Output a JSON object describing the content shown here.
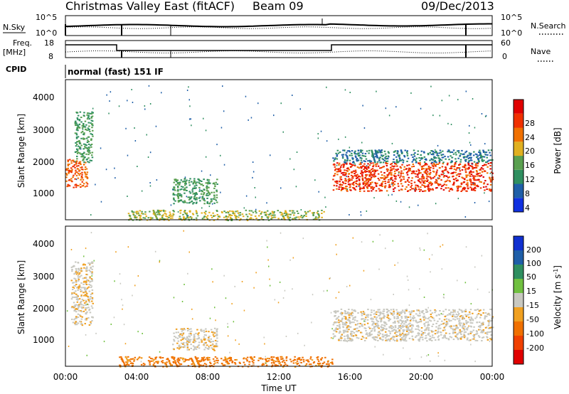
{
  "header": {
    "station": "Christmas Valley East (fitACF)",
    "beam": "Beam 09",
    "date": "09/Dec/2013"
  },
  "noise_panel": {
    "left_label": "N.Sky",
    "right_label": "N.Search",
    "left_ticks": [
      "10^5",
      "10^0"
    ],
    "right_ticks": [
      "10^5",
      "10^0"
    ]
  },
  "freq_panel": {
    "left_label_line1": "Freq.",
    "left_label_line2": "[MHz]",
    "right_label": "Nave",
    "left_ticks": [
      "18",
      "8"
    ],
    "right_ticks": [
      "60",
      "0"
    ]
  },
  "cpid": {
    "label": "CPID",
    "value": "normal (fast) 151 IF"
  },
  "power_panel": {
    "ylabel": "Slant Range [km]",
    "yticks": [
      "4000",
      "3000",
      "2000",
      "1000"
    ],
    "colorbar_label": "Power [dB]",
    "colorbar_ticks": [
      "28",
      "24",
      "20",
      "16",
      "12",
      "8",
      "4"
    ],
    "colors": [
      "#1030e0",
      "#1f5fa8",
      "#2f8f60",
      "#5aa050",
      "#e0b020",
      "#f07000",
      "#f03000",
      "#e00000"
    ]
  },
  "velocity_panel": {
    "ylabel": "Slant Range [km]",
    "yticks": [
      "4000",
      "3000",
      "2000",
      "1000"
    ],
    "colorbar_label": "Velocity [m s",
    "colorbar_label_sup": "-1",
    "colorbar_label_end": "]",
    "colorbar_ticks": [
      "200",
      "100",
      "50",
      "15",
      "-15",
      "-50",
      "-100",
      "-200"
    ],
    "colors": [
      "#1030d0",
      "#1f5fa8",
      "#2f8f60",
      "#70c040",
      "#c8c8c0",
      "#f0a020",
      "#f07000",
      "#f04000",
      "#e00000"
    ]
  },
  "xaxis": {
    "label": "Time UT",
    "ticks": [
      "00:00",
      "04:00",
      "08:00",
      "12:00",
      "16:00",
      "20:00",
      "00:00"
    ]
  },
  "chart_data": {
    "type": "heatmap",
    "x_range_hours": [
      0,
      24
    ],
    "y_range_km": [
      180,
      4600
    ],
    "power_regions": [
      {
        "t0": 0.0,
        "t1": 1.2,
        "r0": 1200,
        "r1": 2100,
        "value_db": 24
      },
      {
        "t0": 0.5,
        "t1": 1.5,
        "r0": 2000,
        "r1": 3600,
        "value_db": 12
      },
      {
        "t0": 6.0,
        "t1": 8.5,
        "r0": 700,
        "r1": 1500,
        "value_db": 12
      },
      {
        "t0": 3.5,
        "t1": 14.5,
        "r0": 180,
        "r1": 500,
        "value_db": 16
      },
      {
        "t0": 15.0,
        "t1": 24.0,
        "r0": 1100,
        "r1": 2000,
        "value_db": 26
      },
      {
        "t0": 15.0,
        "t1": 24.0,
        "r0": 2000,
        "r1": 2400,
        "value_db": 8
      }
    ],
    "velocity_regions": [
      {
        "t0": 0.3,
        "t1": 1.5,
        "r0": 1500,
        "r1": 3500,
        "value_ms": -10
      },
      {
        "t0": 6.0,
        "t1": 8.5,
        "r0": 700,
        "r1": 1400,
        "value_ms": -10
      },
      {
        "t0": 3.0,
        "t1": 15.0,
        "r0": 180,
        "r1": 500,
        "value_ms": -60
      },
      {
        "t0": 15.0,
        "t1": 24.0,
        "r0": 1000,
        "r1": 2000,
        "value_ms": -5
      }
    ]
  }
}
